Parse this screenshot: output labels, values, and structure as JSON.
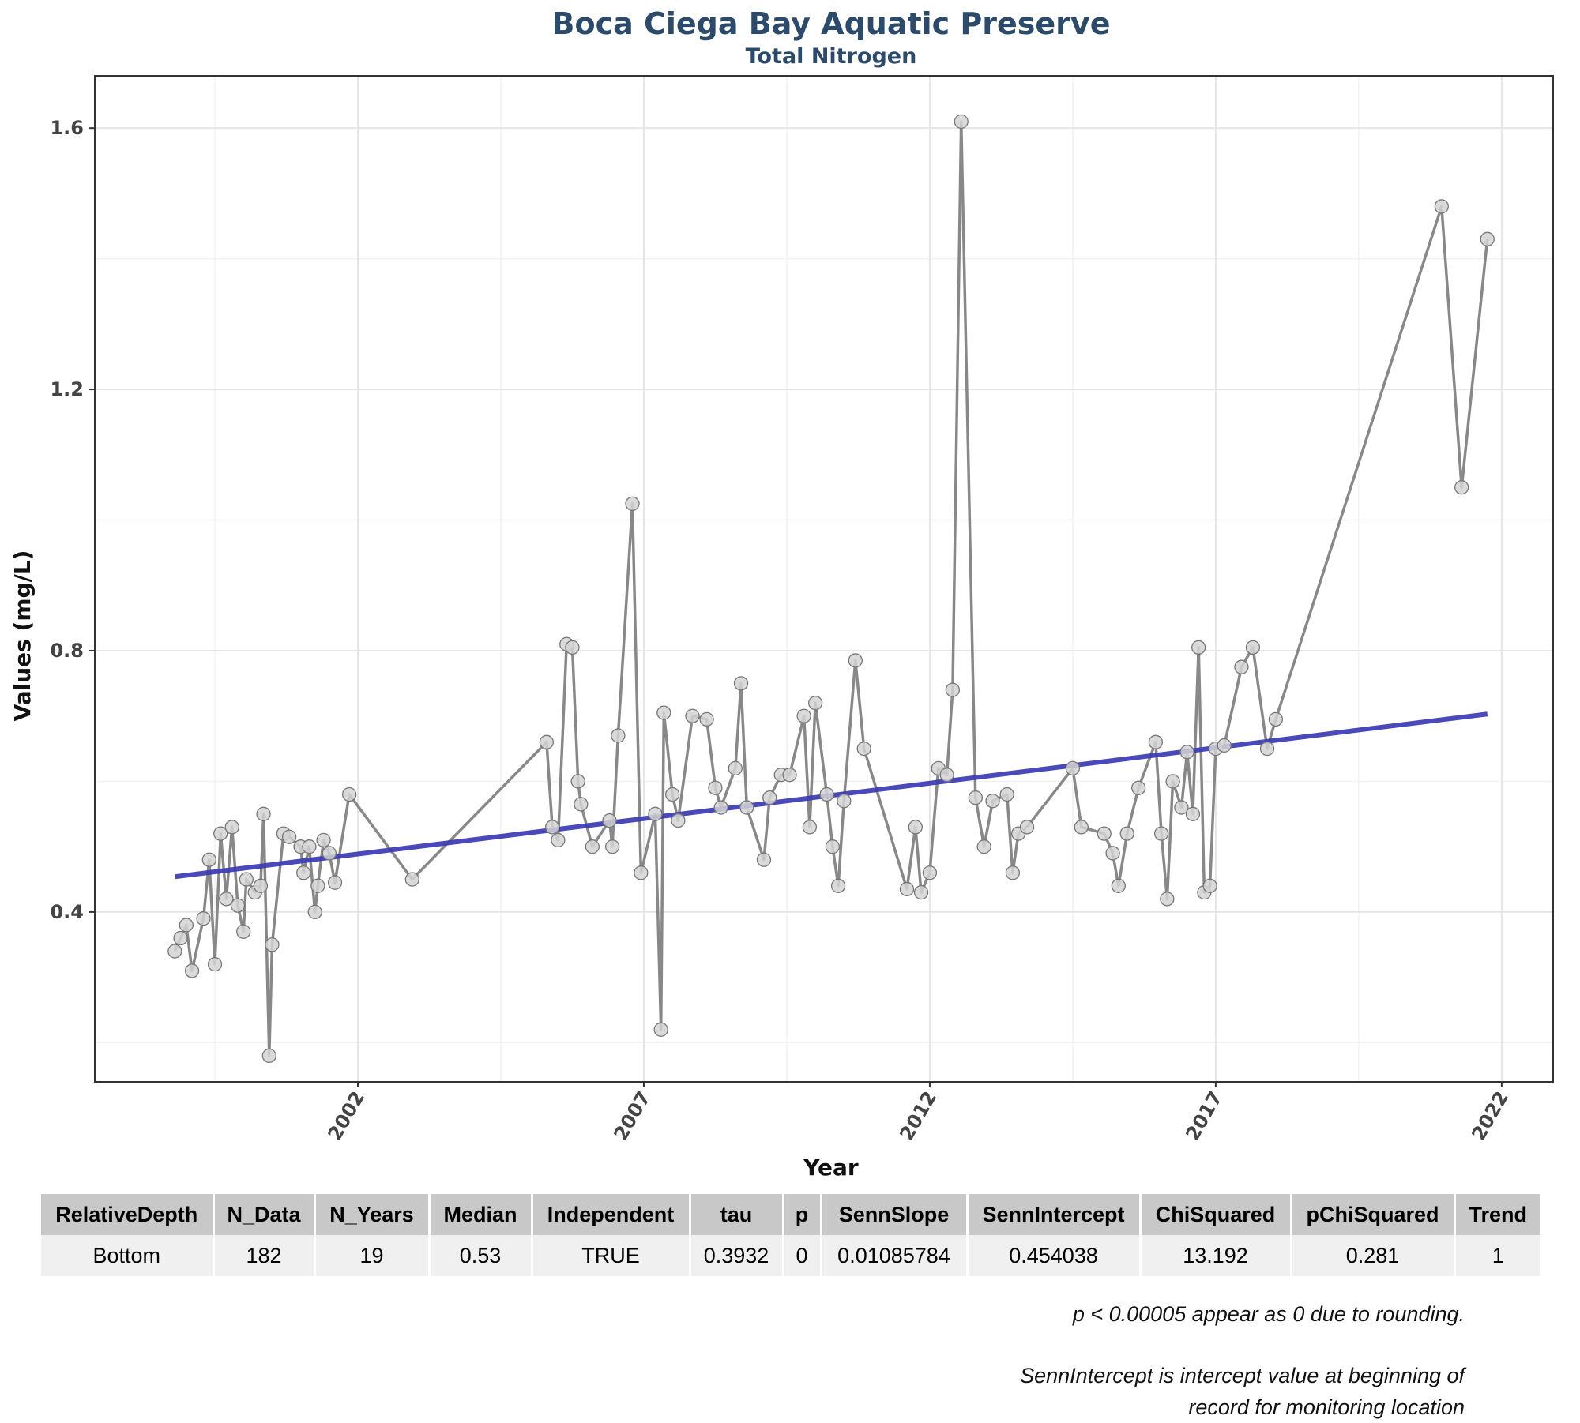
{
  "chart_data": {
    "type": "line",
    "title": "Boca Ciega Bay Aquatic Preserve",
    "subtitle": "Total Nitrogen",
    "xlabel": "Year",
    "ylabel": "Values (mg/L)",
    "x_ticks": [
      2002,
      2007,
      2012,
      2017,
      2022
    ],
    "y_ticks": [
      0.4,
      0.8,
      1.2,
      1.6
    ],
    "xlim": [
      1997.4,
      2022.9
    ],
    "ylim": [
      0.14,
      1.68
    ],
    "grid": true,
    "series": [
      {
        "points": [
          [
            1998.8,
            0.34
          ],
          [
            1998.9,
            0.36
          ],
          [
            1999.0,
            0.38
          ],
          [
            1999.1,
            0.31
          ],
          [
            1999.3,
            0.39
          ],
          [
            1999.4,
            0.48
          ],
          [
            1999.5,
            0.32
          ],
          [
            1999.6,
            0.52
          ],
          [
            1999.7,
            0.42
          ],
          [
            1999.8,
            0.53
          ],
          [
            1999.9,
            0.41
          ],
          [
            2000.0,
            0.37
          ],
          [
            2000.05,
            0.45
          ],
          [
            2000.2,
            0.43
          ],
          [
            2000.3,
            0.44
          ],
          [
            2000.35,
            0.55
          ],
          [
            2000.45,
            0.18
          ],
          [
            2000.5,
            0.35
          ],
          [
            2000.7,
            0.52
          ],
          [
            2000.8,
            0.515
          ],
          [
            2001.0,
            0.5
          ],
          [
            2001.05,
            0.46
          ],
          [
            2001.15,
            0.5
          ],
          [
            2001.25,
            0.4
          ],
          [
            2001.3,
            0.44
          ],
          [
            2001.4,
            0.51
          ],
          [
            2001.5,
            0.49
          ],
          [
            2001.6,
            0.445
          ],
          [
            2001.85,
            0.58
          ],
          [
            2002.95,
            0.45
          ],
          [
            2005.3,
            0.66
          ],
          [
            2005.4,
            0.53
          ],
          [
            2005.5,
            0.51
          ],
          [
            2005.65,
            0.81
          ],
          [
            2005.75,
            0.805
          ],
          [
            2005.85,
            0.6
          ],
          [
            2005.9,
            0.565
          ],
          [
            2006.1,
            0.5
          ],
          [
            2006.4,
            0.54
          ],
          [
            2006.45,
            0.5
          ],
          [
            2006.55,
            0.67
          ],
          [
            2006.8,
            1.025
          ],
          [
            2006.95,
            0.46
          ],
          [
            2007.2,
            0.55
          ],
          [
            2007.3,
            0.22
          ],
          [
            2007.35,
            0.705
          ],
          [
            2007.5,
            0.58
          ],
          [
            2007.6,
            0.54
          ],
          [
            2007.85,
            0.7
          ],
          [
            2008.1,
            0.695
          ],
          [
            2008.25,
            0.59
          ],
          [
            2008.35,
            0.56
          ],
          [
            2008.6,
            0.62
          ],
          [
            2008.7,
            0.75
          ],
          [
            2008.8,
            0.56
          ],
          [
            2009.1,
            0.48
          ],
          [
            2009.2,
            0.575
          ],
          [
            2009.4,
            0.61
          ],
          [
            2009.55,
            0.61
          ],
          [
            2009.8,
            0.7
          ],
          [
            2009.9,
            0.53
          ],
          [
            2010.0,
            0.72
          ],
          [
            2010.2,
            0.58
          ],
          [
            2010.3,
            0.5
          ],
          [
            2010.4,
            0.44
          ],
          [
            2010.5,
            0.57
          ],
          [
            2010.7,
            0.785
          ],
          [
            2010.85,
            0.65
          ],
          [
            2011.6,
            0.435
          ],
          [
            2011.75,
            0.53
          ],
          [
            2011.85,
            0.43
          ],
          [
            2012.0,
            0.46
          ],
          [
            2012.15,
            0.62
          ],
          [
            2012.3,
            0.61
          ],
          [
            2012.4,
            0.74
          ],
          [
            2012.55,
            1.61
          ],
          [
            2012.8,
            0.575
          ],
          [
            2012.95,
            0.5
          ],
          [
            2013.1,
            0.57
          ],
          [
            2013.35,
            0.58
          ],
          [
            2013.45,
            0.46
          ],
          [
            2013.55,
            0.52
          ],
          [
            2013.7,
            0.53
          ],
          [
            2014.5,
            0.62
          ],
          [
            2014.65,
            0.53
          ],
          [
            2015.05,
            0.52
          ],
          [
            2015.2,
            0.49
          ],
          [
            2015.3,
            0.44
          ],
          [
            2015.45,
            0.52
          ],
          [
            2015.65,
            0.59
          ],
          [
            2015.95,
            0.66
          ],
          [
            2016.05,
            0.52
          ],
          [
            2016.15,
            0.42
          ],
          [
            2016.25,
            0.6
          ],
          [
            2016.4,
            0.56
          ],
          [
            2016.5,
            0.645
          ],
          [
            2016.6,
            0.55
          ],
          [
            2016.7,
            0.805
          ],
          [
            2016.8,
            0.43
          ],
          [
            2016.9,
            0.44
          ],
          [
            2017.0,
            0.65
          ],
          [
            2017.15,
            0.655
          ],
          [
            2017.45,
            0.775
          ],
          [
            2017.65,
            0.805
          ],
          [
            2017.9,
            0.65
          ],
          [
            2018.05,
            0.695
          ],
          [
            2020.95,
            1.48
          ],
          [
            2021.3,
            1.05
          ],
          [
            2021.75,
            1.43
          ]
        ]
      }
    ],
    "trend_line": {
      "x": [
        1998.8,
        2021.75
      ],
      "y": [
        0.454,
        0.703
      ]
    },
    "colors": {
      "line": "#888888",
      "point_fill": "#d3d3d3",
      "point_stroke": "#777777",
      "trend": "#3a3ab5",
      "title": "#2c4a69"
    }
  },
  "table": {
    "headers": [
      "RelativeDepth",
      "N_Data",
      "N_Years",
      "Median",
      "Independent",
      "tau",
      "p",
      "SennSlope",
      "SennIntercept",
      "ChiSquared",
      "pChiSquared",
      "Trend"
    ],
    "rows": [
      [
        "Bottom",
        "182",
        "19",
        "0.53",
        "TRUE",
        "0.3932",
        "0",
        "0.01085784",
        "0.454038",
        "13.192",
        "0.281",
        "1"
      ]
    ]
  },
  "notes": {
    "p_rounding": "p < 0.00005 appear as 0 due to rounding.",
    "intercept_line1": "SennIntercept is intercept value at beginning of",
    "intercept_line2": "record for monitoring location"
  }
}
